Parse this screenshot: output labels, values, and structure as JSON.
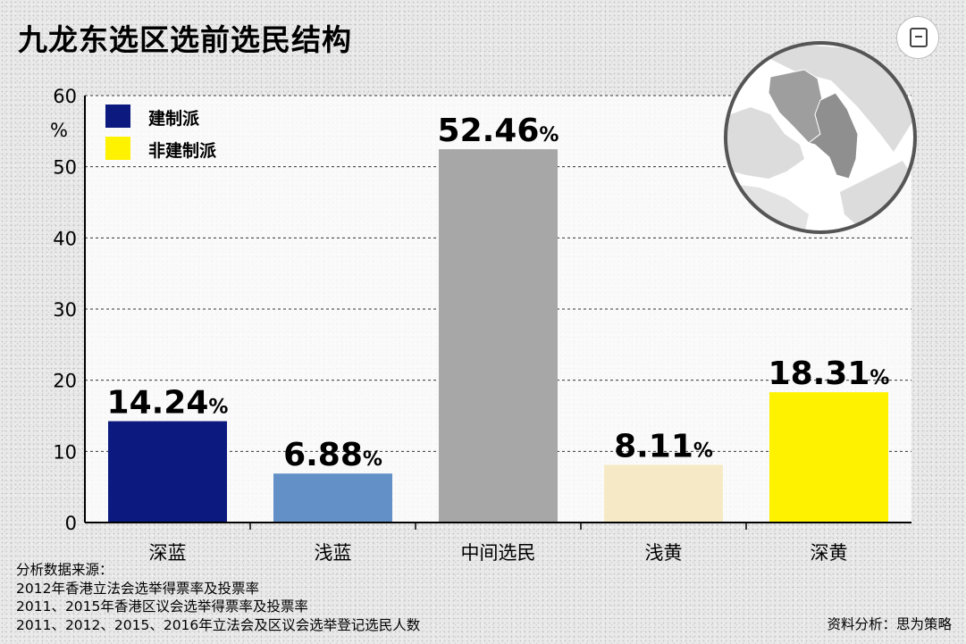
{
  "title": "九龙东选区选前选民结构",
  "legend": {
    "items": [
      {
        "label": "建制派",
        "color": "#0c1a80"
      },
      {
        "label": "非建制派",
        "color": "#fff200"
      }
    ]
  },
  "sources": {
    "heading": "分析数据来源：",
    "lines": [
      "2012年香港立法会选举得票率及投票率",
      "2011、2015年香港区议会选举得票率及投票率",
      "2011、2012、2015、2016年立法会及区议会选举登记选民人数"
    ]
  },
  "credit": "资料分析：思为策略",
  "chart_data": {
    "type": "bar",
    "title": "九龙东选区选前选民结构",
    "ylabel": "%",
    "ylim": [
      0,
      60
    ],
    "yticks": [
      0,
      10,
      20,
      30,
      40,
      50,
      60
    ],
    "grid": true,
    "legend_position": "top-left",
    "categories": [
      "深蓝",
      "浅蓝",
      "中间选民",
      "浅黄",
      "深黄"
    ],
    "values": [
      14.24,
      6.88,
      52.46,
      8.11,
      18.31
    ],
    "value_labels": [
      "14.24",
      "6.88",
      "52.46",
      "8.11",
      "18.31"
    ],
    "value_suffix": "%",
    "colors": [
      "#0c1a80",
      "#6290c7",
      "#a7a7a7",
      "#f6eac6",
      "#fff200"
    ]
  }
}
